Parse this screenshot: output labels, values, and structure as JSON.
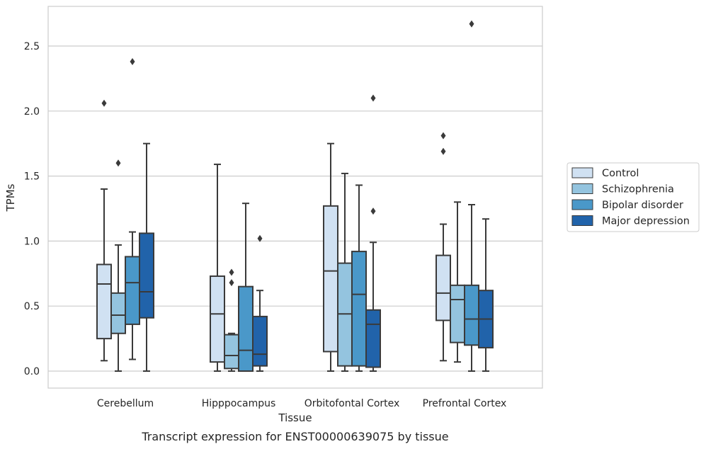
{
  "caption": "Transcript expression for ENST00000639075 by tissue",
  "chart_data": {
    "type": "box",
    "xlabel": "Tissue",
    "ylabel": "TPMs",
    "ylim": [
      -0.13,
      2.81
    ],
    "yticks": [
      0.0,
      0.5,
      1.0,
      1.5,
      2.0,
      2.5
    ],
    "ytick_labels": [
      "0.0",
      "0.5",
      "1.0",
      "1.5",
      "2.0",
      "2.5"
    ],
    "grid": "horizontal",
    "legend_position": "right",
    "categories": [
      "Cerebellum",
      "Hipppocampus",
      "Orbitofontal Cortex",
      "Prefrontal Cortex"
    ],
    "series": [
      {
        "name": "Control",
        "color": "#d0e1f2",
        "boxes": [
          {
            "q1": 0.25,
            "median": 0.67,
            "q3": 0.82,
            "whislo": 0.08,
            "whishi": 1.4,
            "fliers": [
              2.06
            ]
          },
          {
            "q1": 0.07,
            "median": 0.44,
            "q3": 0.73,
            "whislo": 0.0,
            "whishi": 1.59,
            "fliers": []
          },
          {
            "q1": 0.15,
            "median": 0.77,
            "q3": 1.27,
            "whislo": 0.0,
            "whishi": 1.75,
            "fliers": []
          },
          {
            "q1": 0.39,
            "median": 0.6,
            "q3": 0.89,
            "whislo": 0.08,
            "whishi": 1.13,
            "fliers": [
              1.69,
              1.81
            ]
          }
        ]
      },
      {
        "name": "Schizophrenia",
        "color": "#94c4df",
        "boxes": [
          {
            "q1": 0.29,
            "median": 0.43,
            "q3": 0.6,
            "whislo": 0.0,
            "whishi": 0.97,
            "fliers": [
              1.6
            ]
          },
          {
            "q1": 0.02,
            "median": 0.12,
            "q3": 0.28,
            "whislo": 0.0,
            "whishi": 0.29,
            "fliers": [
              0.68,
              0.76
            ]
          },
          {
            "q1": 0.04,
            "median": 0.44,
            "q3": 0.83,
            "whislo": 0.0,
            "whishi": 1.52,
            "fliers": []
          },
          {
            "q1": 0.22,
            "median": 0.55,
            "q3": 0.66,
            "whislo": 0.07,
            "whishi": 1.3,
            "fliers": []
          }
        ]
      },
      {
        "name": "Bipolar disorder",
        "color": "#4a98c9",
        "boxes": [
          {
            "q1": 0.36,
            "median": 0.68,
            "q3": 0.88,
            "whislo": 0.09,
            "whishi": 1.07,
            "fliers": [
              2.38
            ]
          },
          {
            "q1": 0.0,
            "median": 0.16,
            "q3": 0.65,
            "whislo": 0.0,
            "whishi": 1.29,
            "fliers": []
          },
          {
            "q1": 0.04,
            "median": 0.59,
            "q3": 0.92,
            "whislo": 0.0,
            "whishi": 1.43,
            "fliers": []
          },
          {
            "q1": 0.2,
            "median": 0.4,
            "q3": 0.66,
            "whislo": 0.0,
            "whishi": 1.28,
            "fliers": [
              2.67
            ]
          }
        ]
      },
      {
        "name": "Major depression",
        "color": "#2163aa",
        "boxes": [
          {
            "q1": 0.41,
            "median": 0.61,
            "q3": 1.06,
            "whislo": 0.0,
            "whishi": 1.75,
            "fliers": []
          },
          {
            "q1": 0.04,
            "median": 0.13,
            "q3": 0.42,
            "whislo": 0.0,
            "whishi": 0.62,
            "fliers": [
              1.02
            ]
          },
          {
            "q1": 0.03,
            "median": 0.36,
            "q3": 0.47,
            "whislo": 0.0,
            "whishi": 0.99,
            "fliers": [
              1.23,
              2.1
            ]
          },
          {
            "q1": 0.18,
            "median": 0.4,
            "q3": 0.62,
            "whislo": 0.0,
            "whishi": 1.17,
            "fliers": []
          }
        ]
      }
    ]
  }
}
